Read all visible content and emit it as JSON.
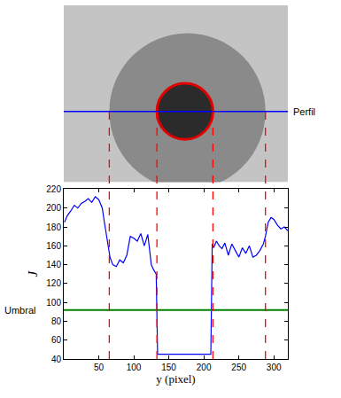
{
  "chart_data": {
    "type": "line",
    "x": [
      1,
      5,
      10,
      15,
      20,
      25,
      30,
      35,
      40,
      45,
      50,
      55,
      58,
      62,
      66,
      70,
      75,
      80,
      85,
      90,
      95,
      100,
      105,
      110,
      115,
      120,
      125,
      128,
      132,
      134,
      138,
      150,
      170,
      190,
      210,
      212,
      214,
      218,
      222,
      226,
      230,
      235,
      240,
      245,
      250,
      255,
      260,
      265,
      270,
      275,
      280,
      285,
      288,
      292,
      296,
      300,
      305,
      310,
      315,
      320
    ],
    "values": [
      185,
      192,
      197,
      203,
      200,
      205,
      207,
      210,
      206,
      212,
      209,
      200,
      185,
      165,
      148,
      140,
      138,
      145,
      142,
      150,
      170,
      168,
      165,
      173,
      160,
      172,
      140,
      135,
      130,
      45,
      45,
      45,
      45,
      45,
      45,
      162,
      158,
      165,
      160,
      157,
      163,
      150,
      162,
      155,
      148,
      158,
      152,
      160,
      148,
      150,
      155,
      162,
      170,
      185,
      190,
      188,
      182,
      178,
      180,
      176
    ],
    "color": "#0000ff",
    "xlabel": "y (pixel)",
    "ylabel": "J",
    "xlim": [
      0,
      320
    ],
    "ylim": [
      40,
      220
    ],
    "xticks": [
      50,
      100,
      150,
      200,
      250,
      300
    ],
    "yticks": [
      40,
      60,
      80,
      100,
      120,
      140,
      160,
      180,
      200,
      220
    ],
    "grid": false,
    "threshold": {
      "value": 92,
      "label": "Umbral",
      "color": "#008000"
    },
    "boundaries": {
      "values": [
        65,
        133,
        213,
        288
      ],
      "color": "#ff0000",
      "line_style": "dash"
    },
    "profile": {
      "label": "Perfil",
      "color": "#0000ff"
    }
  }
}
